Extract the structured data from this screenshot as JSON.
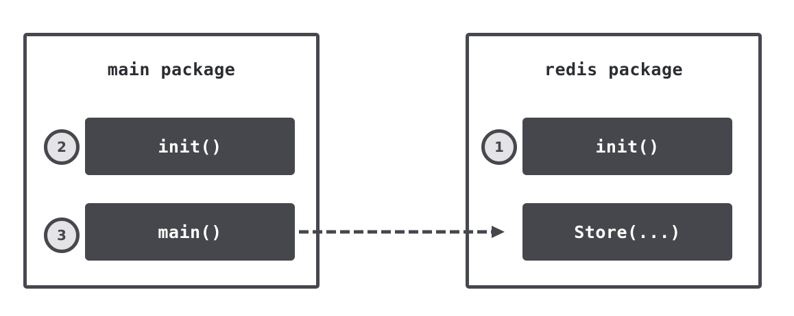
{
  "diagram": {
    "main_package": {
      "title": "main package",
      "functions": [
        {
          "step": "2",
          "label": "init()"
        },
        {
          "step": "3",
          "label": "main()"
        }
      ]
    },
    "redis_package": {
      "title": "redis package",
      "functions": [
        {
          "step": "1",
          "label": "init()"
        },
        {
          "step": "",
          "label": "Store(...)"
        }
      ]
    },
    "edges": [
      {
        "from": "main()",
        "to": "Store(...)",
        "style": "dashed"
      }
    ],
    "colors": {
      "box_fill": "#45474c",
      "border": "#46484e",
      "step_fill": "#e4e4e7",
      "text_dark": "#2b2d33",
      "text_light": "#ffffff"
    }
  }
}
